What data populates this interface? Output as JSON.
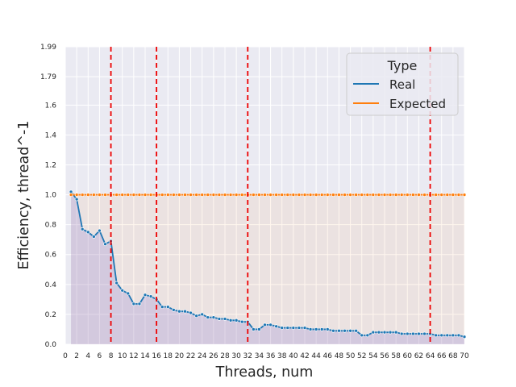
{
  "chart_data": {
    "type": "line",
    "xlabel": "Threads, num",
    "ylabel": "Efficiency, thread^-1",
    "xlim": [
      0,
      70
    ],
    "ylim": [
      0,
      1.99
    ],
    "x_ticks": [
      0,
      2,
      4,
      6,
      8,
      10,
      12,
      14,
      16,
      18,
      20,
      22,
      24,
      26,
      28,
      30,
      32,
      34,
      36,
      38,
      40,
      42,
      44,
      46,
      48,
      50,
      52,
      54,
      56,
      58,
      60,
      62,
      64,
      66,
      68,
      70
    ],
    "y_ticks": [
      "0.0",
      "0.2",
      "0.4",
      "0.6",
      "0.8",
      "1.0",
      "1.2",
      "1.4",
      "1.6",
      "1.79",
      "1.99"
    ],
    "y_tick_values": [
      0,
      0.2,
      0.4,
      0.6,
      0.8,
      1.0,
      1.2,
      1.4,
      1.6,
      1.79,
      1.99
    ],
    "grid": true,
    "legend": {
      "title": "Type",
      "placement": "top-right"
    },
    "vlines": [
      8,
      16,
      32,
      64
    ],
    "series": [
      {
        "name": "Real",
        "color": "#1f77b4",
        "x": [
          1,
          2,
          3,
          4,
          5,
          6,
          7,
          8,
          9,
          10,
          11,
          12,
          13,
          14,
          15,
          16,
          17,
          18,
          19,
          20,
          21,
          22,
          23,
          24,
          25,
          26,
          27,
          28,
          29,
          30,
          31,
          32,
          33,
          34,
          35,
          36,
          37,
          38,
          39,
          40,
          41,
          42,
          43,
          44,
          45,
          46,
          47,
          48,
          49,
          50,
          51,
          52,
          53,
          54,
          55,
          56,
          57,
          58,
          59,
          60,
          61,
          62,
          63,
          64,
          65,
          66,
          67,
          68,
          69,
          70
        ],
        "values": [
          1.02,
          0.97,
          0.77,
          0.75,
          0.72,
          0.76,
          0.67,
          0.69,
          0.41,
          0.36,
          0.34,
          0.27,
          0.27,
          0.33,
          0.32,
          0.3,
          0.25,
          0.25,
          0.23,
          0.22,
          0.22,
          0.21,
          0.19,
          0.2,
          0.18,
          0.18,
          0.17,
          0.17,
          0.16,
          0.16,
          0.15,
          0.15,
          0.1,
          0.1,
          0.13,
          0.13,
          0.12,
          0.11,
          0.11,
          0.11,
          0.11,
          0.11,
          0.1,
          0.1,
          0.1,
          0.1,
          0.09,
          0.09,
          0.09,
          0.09,
          0.09,
          0.06,
          0.06,
          0.08,
          0.08,
          0.08,
          0.08,
          0.08,
          0.07,
          0.07,
          0.07,
          0.07,
          0.07,
          0.07,
          0.06,
          0.06,
          0.06,
          0.06,
          0.06,
          0.05
        ]
      },
      {
        "name": "Expected",
        "color": "#ff7f0e",
        "x": [
          1,
          70
        ],
        "values": [
          1.0,
          1.0
        ]
      }
    ]
  }
}
